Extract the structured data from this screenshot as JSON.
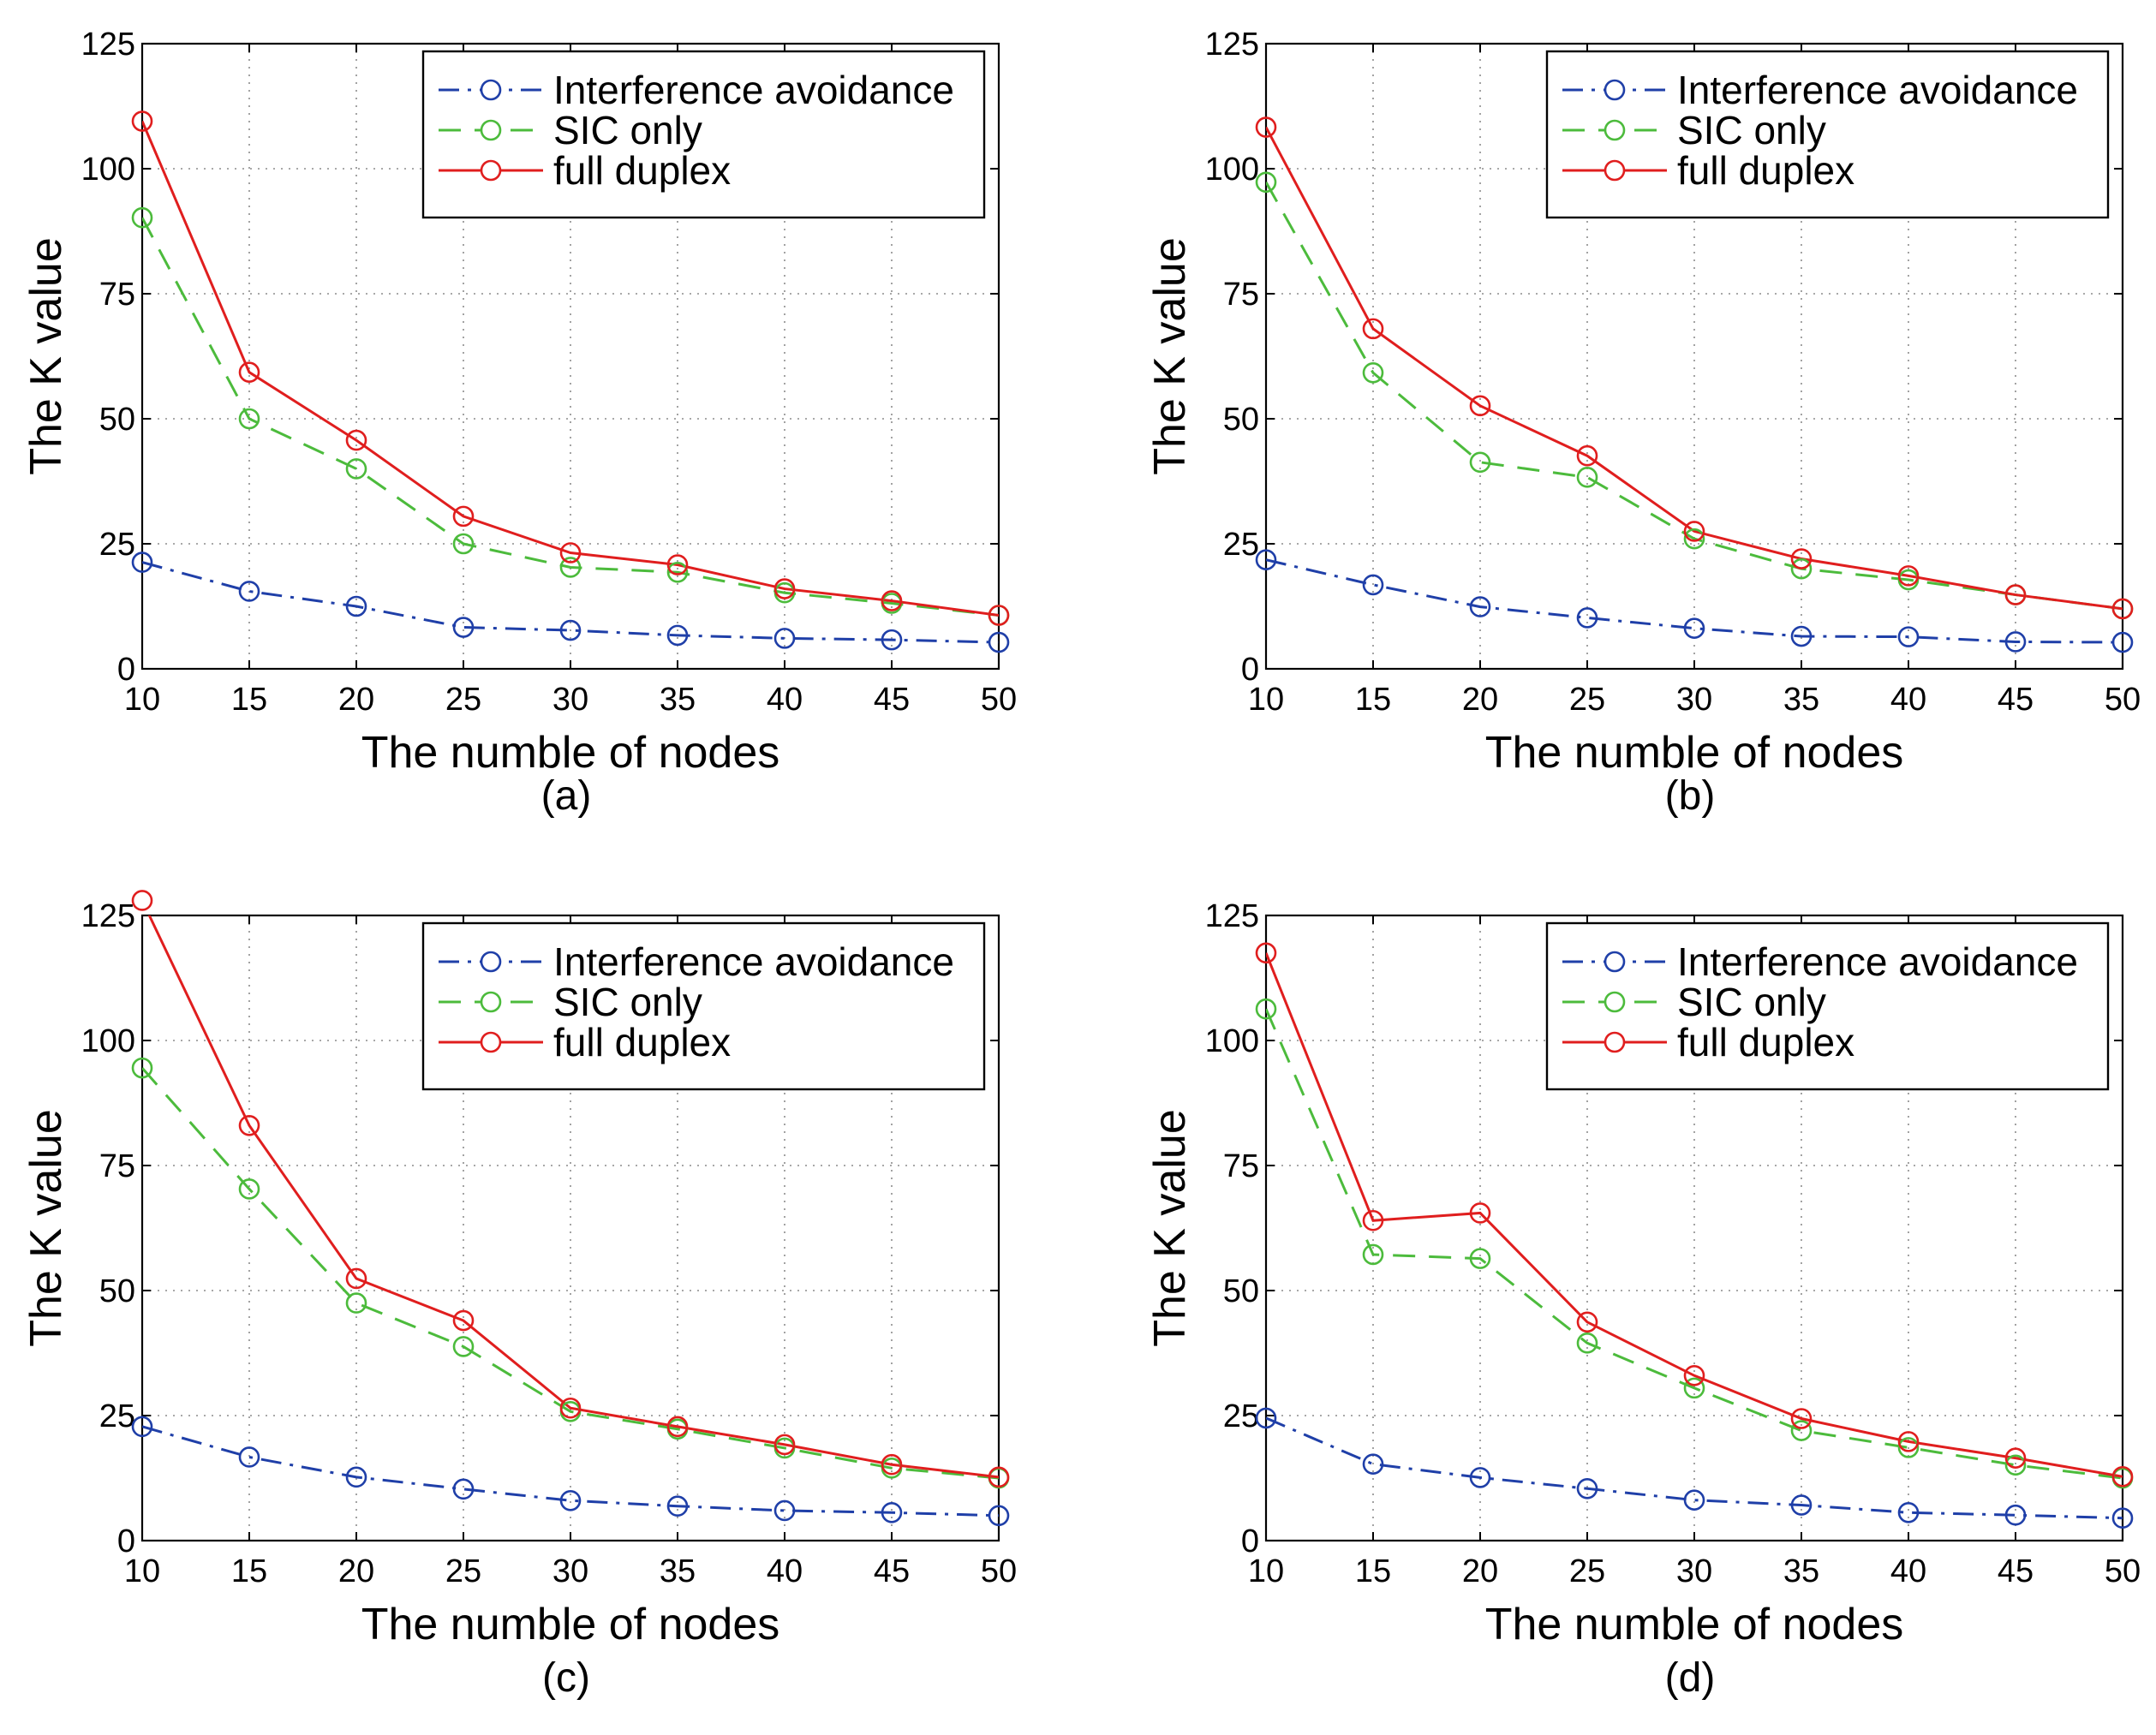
{
  "chart_data": [
    {
      "type": "line",
      "panel_label": "(a)",
      "xlabel": "The numble of nodes",
      "ylabel": "The K value",
      "x": [
        10,
        15,
        20,
        25,
        30,
        35,
        40,
        45,
        50
      ],
      "xlim": [
        10,
        50
      ],
      "ylim": [
        0,
        125
      ],
      "xticks": [
        10,
        15,
        20,
        25,
        30,
        35,
        40,
        45,
        50
      ],
      "yticks": [
        0,
        25,
        50,
        75,
        100,
        125
      ],
      "grid": true,
      "legend_position": "top-right",
      "series": [
        {
          "name": "Interference avoidance",
          "color": "#1f3fa8",
          "style": "dashdot",
          "marker": "circle",
          "values": [
            21.3,
            15.5,
            12.5,
            8.3,
            7.7,
            6.7,
            6.1,
            5.8,
            5.3
          ]
        },
        {
          "name": "SIC only",
          "color": "#4cbb3c",
          "style": "dashed",
          "marker": "circle",
          "values": [
            90.2,
            50.0,
            40.0,
            25.0,
            20.3,
            19.3,
            15.2,
            13.1,
            10.7
          ]
        },
        {
          "name": "full duplex",
          "color": "#e01e1e",
          "style": "solid",
          "marker": "circle",
          "values": [
            109.5,
            59.3,
            45.7,
            30.5,
            23.2,
            20.8,
            16.0,
            13.6,
            10.7
          ]
        }
      ]
    },
    {
      "type": "line",
      "panel_label": "(b)",
      "xlabel": "The numble of nodes",
      "ylabel": "The K value",
      "x": [
        10,
        15,
        20,
        25,
        30,
        35,
        40,
        45,
        50
      ],
      "xlim": [
        10,
        50
      ],
      "ylim": [
        0,
        125
      ],
      "xticks": [
        10,
        15,
        20,
        25,
        30,
        35,
        40,
        45,
        50
      ],
      "yticks": [
        0,
        25,
        50,
        75,
        100,
        125
      ],
      "grid": true,
      "legend_position": "top-right",
      "series": [
        {
          "name": "Interference avoidance",
          "color": "#1f3fa8",
          "style": "dashdot",
          "marker": "circle",
          "values": [
            21.8,
            16.8,
            12.4,
            10.2,
            8.1,
            6.5,
            6.4,
            5.4,
            5.3
          ]
        },
        {
          "name": "SIC only",
          "color": "#4cbb3c",
          "style": "dashed",
          "marker": "circle",
          "values": [
            97.3,
            59.2,
            41.3,
            38.3,
            26.0,
            20.0,
            17.8,
            14.8,
            12.0
          ]
        },
        {
          "name": "full duplex",
          "color": "#e01e1e",
          "style": "solid",
          "marker": "circle",
          "values": [
            108.3,
            68.0,
            52.6,
            42.6,
            27.5,
            22.0,
            18.6,
            14.8,
            12.0
          ]
        }
      ]
    },
    {
      "type": "line",
      "panel_label": "(c)",
      "xlabel": "The numble of nodes",
      "ylabel": "The K value",
      "x": [
        10,
        15,
        20,
        25,
        30,
        35,
        40,
        45,
        50
      ],
      "xlim": [
        10,
        50
      ],
      "ylim": [
        0,
        125
      ],
      "xticks": [
        10,
        15,
        20,
        25,
        30,
        35,
        40,
        45,
        50
      ],
      "yticks": [
        0,
        25,
        50,
        75,
        100,
        125
      ],
      "grid": true,
      "legend_position": "top-right",
      "series": [
        {
          "name": "Interference avoidance",
          "color": "#1f3fa8",
          "style": "dashdot",
          "marker": "circle",
          "values": [
            22.8,
            16.7,
            12.7,
            10.3,
            8.0,
            6.9,
            6.0,
            5.6,
            5.0
          ]
        },
        {
          "name": "SIC only",
          "color": "#4cbb3c",
          "style": "dashed",
          "marker": "circle",
          "values": [
            94.5,
            70.3,
            47.5,
            38.8,
            25.8,
            22.3,
            18.5,
            14.5,
            12.5
          ]
        },
        {
          "name": "full duplex",
          "color": "#e01e1e",
          "style": "solid",
          "marker": "circle",
          "values": [
            128.0,
            83.0,
            52.4,
            44.0,
            26.5,
            22.8,
            19.2,
            15.2,
            12.7
          ]
        }
      ]
    },
    {
      "type": "line",
      "panel_label": "(d)",
      "xlabel": "The numble of nodes",
      "ylabel": "The K value",
      "x": [
        10,
        15,
        20,
        25,
        30,
        35,
        40,
        45,
        50
      ],
      "xlim": [
        10,
        50
      ],
      "ylim": [
        0,
        125
      ],
      "xticks": [
        10,
        15,
        20,
        25,
        30,
        35,
        40,
        45,
        50
      ],
      "yticks": [
        0,
        25,
        50,
        75,
        100,
        125
      ],
      "grid": true,
      "legend_position": "top-right",
      "series": [
        {
          "name": "Interference avoidance",
          "color": "#1f3fa8",
          "style": "dashdot",
          "marker": "circle",
          "values": [
            24.5,
            15.3,
            12.6,
            10.4,
            8.1,
            7.1,
            5.6,
            5.1,
            4.5
          ]
        },
        {
          "name": "SIC only",
          "color": "#4cbb3c",
          "style": "dashed",
          "marker": "circle",
          "values": [
            106.3,
            57.2,
            56.4,
            39.5,
            30.5,
            22.0,
            18.6,
            15.1,
            12.5
          ]
        },
        {
          "name": "full duplex",
          "color": "#e01e1e",
          "style": "solid",
          "marker": "circle",
          "values": [
            117.5,
            64.0,
            65.5,
            43.7,
            33.0,
            24.4,
            19.8,
            16.5,
            12.8
          ]
        }
      ]
    }
  ]
}
